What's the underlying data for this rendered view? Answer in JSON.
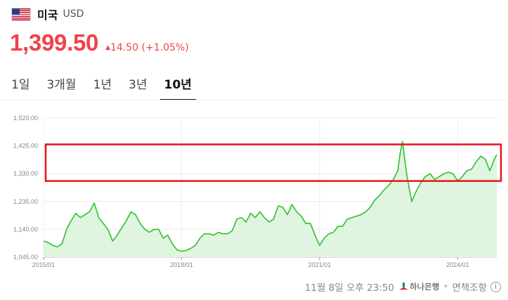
{
  "header": {
    "country": "미국",
    "currency": "USD",
    "flag_icon": "us-flag-icon"
  },
  "quote": {
    "price": "1,399.50",
    "change": "14.50",
    "change_pct": "(+1.05%)",
    "up_color": "#f0424b"
  },
  "tabs": [
    {
      "label": "1일",
      "active": false
    },
    {
      "label": "3개월",
      "active": false
    },
    {
      "label": "1년",
      "active": false
    },
    {
      "label": "3년",
      "active": false
    },
    {
      "label": "10년",
      "active": true
    }
  ],
  "footer": {
    "timestamp": "11월 8일 오후 23:50",
    "bank": "하나은행",
    "disclaimer": "면책조항"
  },
  "chart_data": {
    "type": "area",
    "title": "",
    "xlabel": "",
    "ylabel": "",
    "x_tick_labels": [
      "2015/01",
      "2018/01",
      "2021/01",
      "2024/01"
    ],
    "y_tick_labels": [
      "1,520.00",
      "1,425.00",
      "1,330.00",
      "1,235.00",
      "1,140.00",
      "1,045.00"
    ],
    "ylim": [
      1045,
      1520
    ],
    "xlim": [
      2015.0,
      2024.85
    ],
    "grid": true,
    "line_color": "#2ec12e",
    "fill_color": "#dff5df",
    "highlight_box": {
      "y_from": 1305,
      "y_to": 1430,
      "color": "#e8121b"
    },
    "series": [
      {
        "x": [
          2015.0,
          2015.1,
          2015.2,
          2015.3,
          2015.4,
          2015.5,
          2015.6,
          2015.7,
          2015.8,
          2015.9,
          2016.0,
          2016.1,
          2016.2,
          2016.3,
          2016.4,
          2016.5,
          2016.6,
          2016.7,
          2016.8,
          2016.9,
          2017.0,
          2017.1,
          2017.2,
          2017.3,
          2017.4,
          2017.5,
          2017.6,
          2017.7,
          2017.8,
          2017.9,
          2018.0,
          2018.1,
          2018.2,
          2018.3,
          2018.4,
          2018.5,
          2018.6,
          2018.7,
          2018.8,
          2018.9,
          2019.0,
          2019.1,
          2019.2,
          2019.3,
          2019.4,
          2019.5,
          2019.6,
          2019.7,
          2019.8,
          2019.9,
          2020.0,
          2020.1,
          2020.2,
          2020.3,
          2020.4,
          2020.5,
          2020.6,
          2020.7,
          2020.8,
          2020.9,
          2021.0,
          2021.1,
          2021.2,
          2021.3,
          2021.4,
          2021.5,
          2021.6,
          2021.7,
          2021.8,
          2021.9,
          2022.0,
          2022.1,
          2022.2,
          2022.3,
          2022.4,
          2022.5,
          2022.6,
          2022.7,
          2022.75,
          2022.8,
          2022.85,
          2022.9,
          2023.0,
          2023.1,
          2023.2,
          2023.3,
          2023.4,
          2023.5,
          2023.6,
          2023.7,
          2023.8,
          2023.9,
          2024.0,
          2024.1,
          2024.2,
          2024.3,
          2024.4,
          2024.5,
          2024.6,
          2024.7,
          2024.8,
          2024.85
        ],
        "y": [
          1100,
          1095,
          1085,
          1080,
          1090,
          1140,
          1170,
          1195,
          1180,
          1190,
          1200,
          1230,
          1180,
          1160,
          1140,
          1100,
          1120,
          1145,
          1170,
          1200,
          1190,
          1160,
          1140,
          1130,
          1140,
          1140,
          1110,
          1120,
          1090,
          1070,
          1065,
          1068,
          1075,
          1085,
          1110,
          1125,
          1125,
          1120,
          1130,
          1125,
          1125,
          1135,
          1175,
          1180,
          1165,
          1195,
          1180,
          1200,
          1180,
          1165,
          1175,
          1220,
          1215,
          1190,
          1225,
          1200,
          1185,
          1160,
          1160,
          1120,
          1085,
          1110,
          1125,
          1130,
          1150,
          1150,
          1175,
          1180,
          1185,
          1190,
          1200,
          1215,
          1240,
          1255,
          1275,
          1290,
          1310,
          1340,
          1400,
          1440,
          1380,
          1320,
          1235,
          1270,
          1300,
          1320,
          1330,
          1310,
          1320,
          1330,
          1335,
          1330,
          1305,
          1320,
          1340,
          1345,
          1370,
          1390,
          1380,
          1340,
          1380,
          1395
        ]
      }
    ]
  }
}
